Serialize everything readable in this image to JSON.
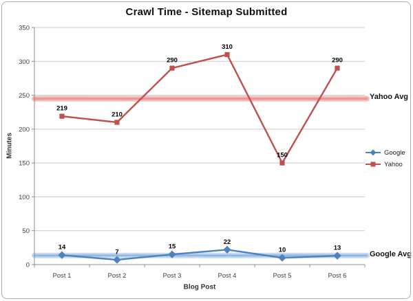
{
  "chart_data": {
    "type": "line",
    "title": "Crawl Time - Sitemap Submitted",
    "xlabel": "Blog Post",
    "ylabel": "Minutes",
    "categories": [
      "Post 1",
      "Post 2",
      "Post 3",
      "Post 4",
      "Post 5",
      "Post 6"
    ],
    "series": [
      {
        "name": "Google",
        "values": [
          14,
          7,
          15,
          22,
          10,
          13
        ],
        "color": "#4F81BD",
        "marker": "diamond",
        "avg_label": "Google Avg",
        "avg_value": 13.5,
        "band_outer": "#C5D9F1",
        "band_core": "#95B9E2"
      },
      {
        "name": "Yahoo",
        "values": [
          219,
          210,
          290,
          310,
          150,
          290
        ],
        "color": "#C0504D",
        "marker": "square",
        "avg_label": "Yahoo Avg",
        "avg_value": 244.8,
        "band_outer": "#F3BCBB",
        "band_core": "#E99694"
      }
    ],
    "ylim": [
      0,
      350
    ],
    "ytick_step": 50,
    "grid": true,
    "data_labels": true,
    "legend_position": "right-middle",
    "colors": {
      "gridline": "#C9C9C9",
      "axis": "#8C8C8C",
      "frame_border": "#ABABAB"
    }
  }
}
